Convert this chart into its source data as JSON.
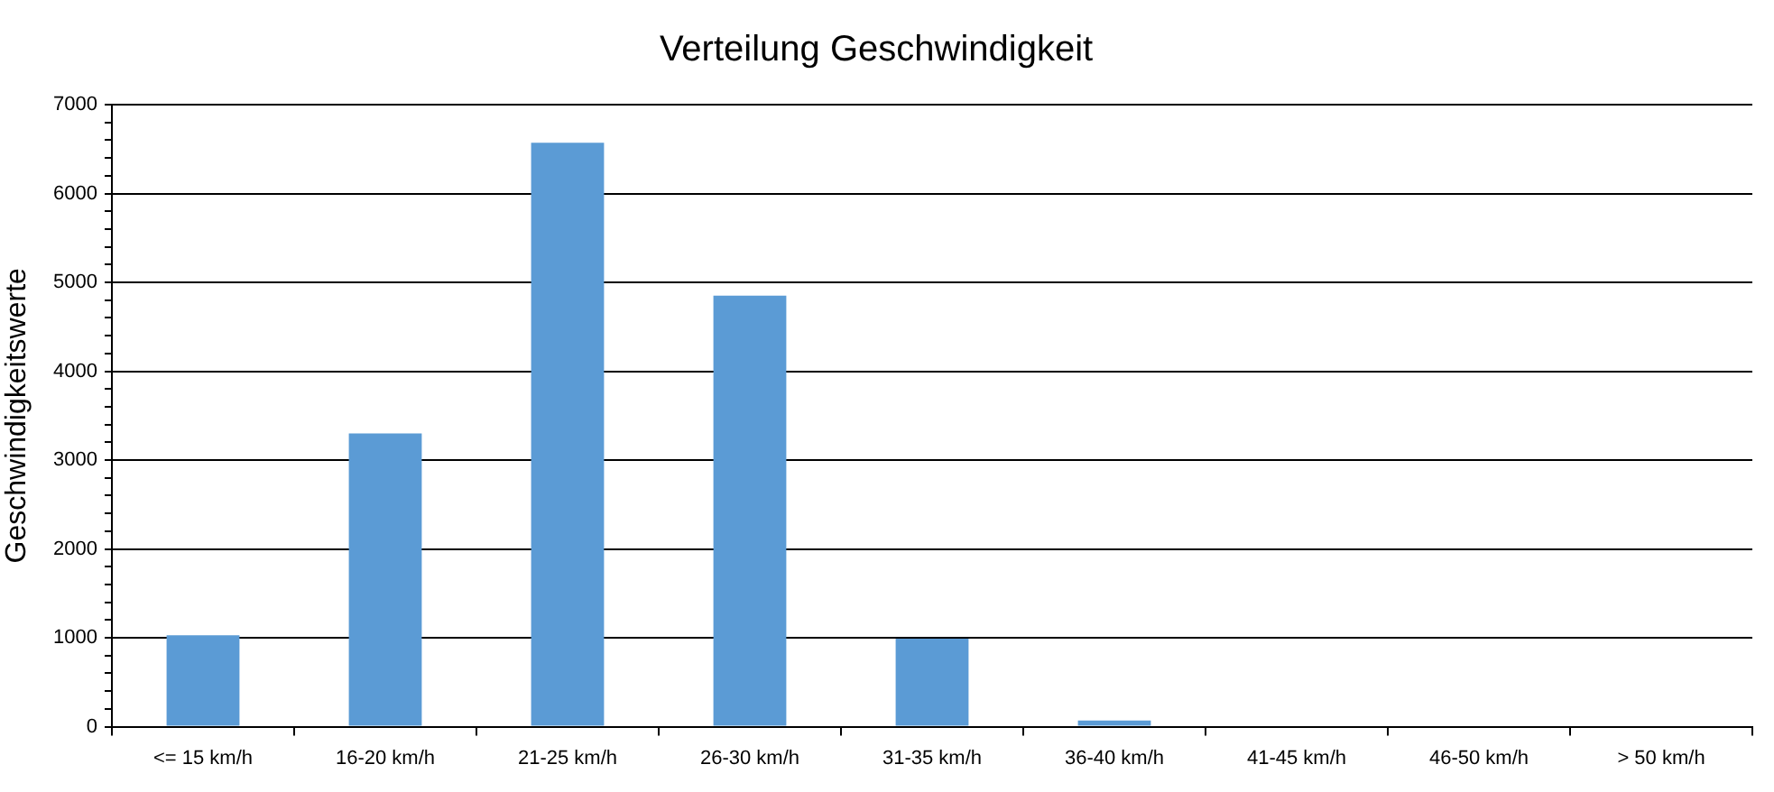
{
  "chart_data": {
    "type": "bar",
    "title": "Verteilung Geschwindigkeit",
    "ylabel": "Geschwindigkeitswerte",
    "categories": [
      "<= 15 km/h",
      "16-20 km/h",
      "21-25 km/h",
      "26-30 km/h",
      "31-35 km/h",
      "36-40 km/h",
      "41-45 km/h",
      "46-50 km/h",
      "> 50 km/h"
    ],
    "values": [
      1030,
      3300,
      6570,
      4850,
      990,
      70,
      0,
      0,
      0
    ],
    "color": "#5b9bd5",
    "ylim": [
      0,
      7000
    ],
    "yticks": [
      0,
      {
        "value": 200,
        "label": null
      },
      {
        "value": 400,
        "label": null
      },
      {
        "value": 600,
        "label": null
      },
      {
        "value": 800,
        "label": null
      },
      1000,
      {
        "value": 1200,
        "label": null
      },
      {
        "value": 1400,
        "label": null
      },
      {
        "value": 1600,
        "label": null
      },
      {
        "value": 1800,
        "label": null
      },
      2000,
      {
        "value": 2200,
        "label": null
      },
      {
        "value": 2400,
        "label": null
      },
      {
        "value": 2600,
        "label": null
      },
      {
        "value": 2800,
        "label": null
      },
      3000,
      {
        "value": 3200,
        "label": null
      },
      {
        "value": 3400,
        "label": null
      },
      {
        "value": 3600,
        "label": null
      },
      {
        "value": 3800,
        "label": null
      },
      4000,
      {
        "value": 4200,
        "label": null
      },
      {
        "value": 4400,
        "label": null
      },
      {
        "value": 4600,
        "label": null
      },
      {
        "value": 4800,
        "label": null
      },
      5000,
      {
        "value": 5200,
        "label": null
      },
      {
        "value": 5400,
        "label": null
      },
      {
        "value": 5600,
        "label": null
      },
      {
        "value": 5800,
        "label": null
      },
      6000,
      {
        "value": 6200,
        "label": null
      },
      {
        "value": 6400,
        "label": null
      },
      {
        "value": 6600,
        "label": null
      },
      {
        "value": 6800,
        "label": null
      },
      7000
    ],
    "grid": "y",
    "legend": false
  }
}
